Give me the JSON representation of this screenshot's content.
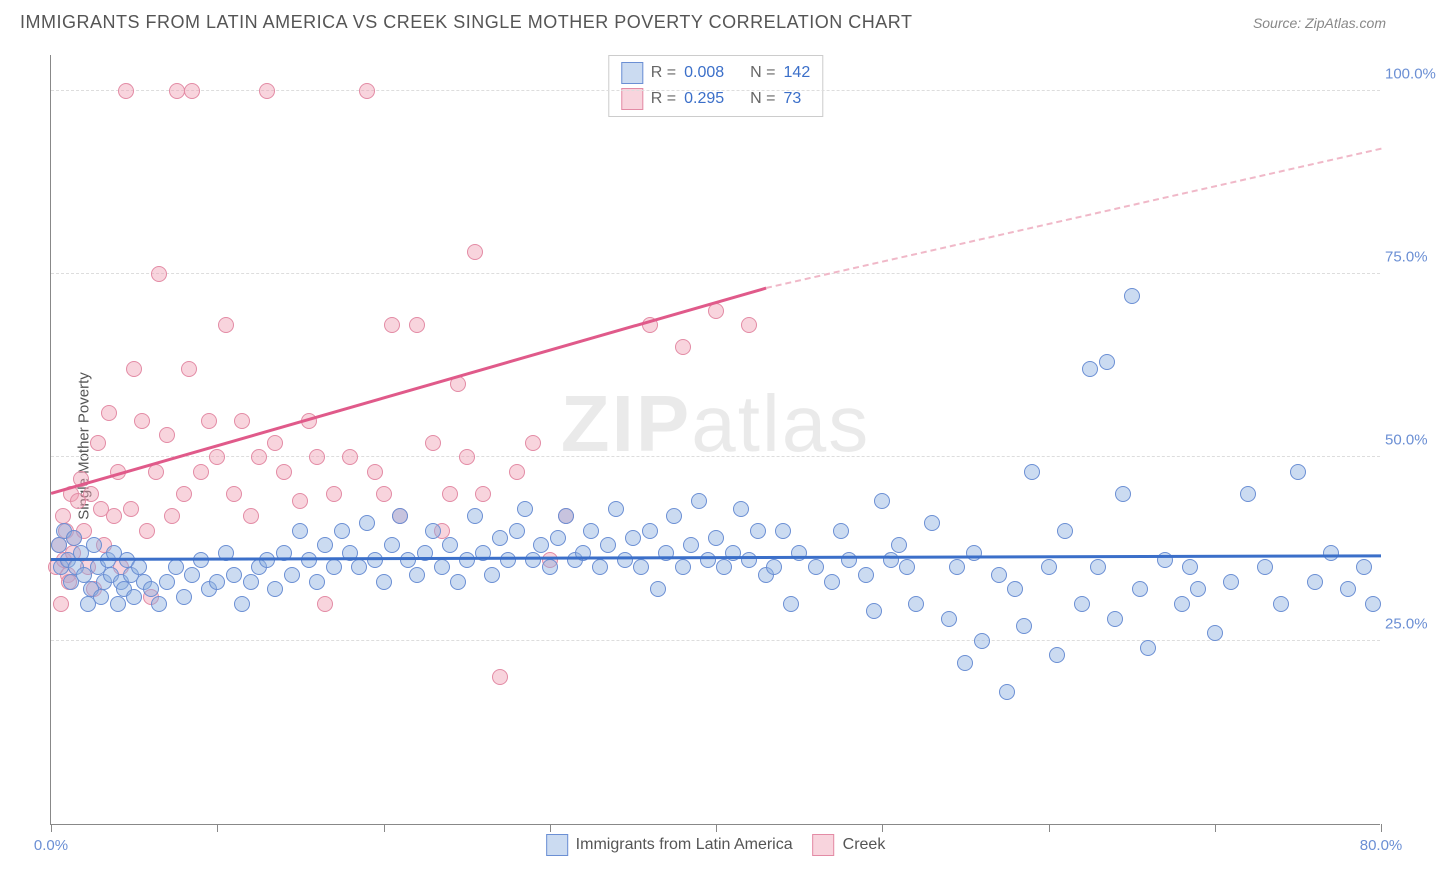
{
  "header": {
    "title": "IMMIGRANTS FROM LATIN AMERICA VS CREEK SINGLE MOTHER POVERTY CORRELATION CHART",
    "source_label": "Source:",
    "source_value": "ZipAtlas.com"
  },
  "chart": {
    "ylabel": "Single Mother Poverty",
    "watermark_bold": "ZIP",
    "watermark_light": "atlas",
    "xlim": [
      0,
      80
    ],
    "ylim": [
      0,
      105
    ],
    "ygrid": [
      25,
      50,
      75,
      100
    ],
    "yticklabels": [
      "25.0%",
      "50.0%",
      "75.0%",
      "100.0%"
    ],
    "ytick_color": "#6b8fd4",
    "xticks": [
      0,
      10,
      20,
      30,
      40,
      50,
      60,
      70,
      80
    ],
    "xaxis_labels": [
      {
        "x": 0,
        "text": "0.0%",
        "color": "#6b8fd4"
      },
      {
        "x": 80,
        "text": "80.0%",
        "color": "#6b8fd4"
      }
    ],
    "series": {
      "blue": {
        "label": "Immigrants from Latin America",
        "fill": "rgba(140,175,225,0.45)",
        "stroke": "#6b8fd4",
        "marker_radius": 8,
        "R": "0.008",
        "N": "142",
        "trend": {
          "x0": 0,
          "y0": 36,
          "x1": 80,
          "y1": 36.5,
          "color": "#3b6fc9"
        },
        "points": [
          [
            0.5,
            38
          ],
          [
            0.6,
            35
          ],
          [
            0.8,
            40
          ],
          [
            1,
            36
          ],
          [
            1.2,
            33
          ],
          [
            1.4,
            39
          ],
          [
            1.5,
            35
          ],
          [
            1.8,
            37
          ],
          [
            2,
            34
          ],
          [
            2.2,
            30
          ],
          [
            2.4,
            32
          ],
          [
            2.6,
            38
          ],
          [
            2.8,
            35
          ],
          [
            3,
            31
          ],
          [
            3.2,
            33
          ],
          [
            3.4,
            36
          ],
          [
            3.6,
            34
          ],
          [
            3.8,
            37
          ],
          [
            4,
            30
          ],
          [
            4.2,
            33
          ],
          [
            4.4,
            32
          ],
          [
            4.6,
            36
          ],
          [
            4.8,
            34
          ],
          [
            5,
            31
          ],
          [
            5.3,
            35
          ],
          [
            5.6,
            33
          ],
          [
            6,
            32
          ],
          [
            6.5,
            30
          ],
          [
            7,
            33
          ],
          [
            7.5,
            35
          ],
          [
            8,
            31
          ],
          [
            8.5,
            34
          ],
          [
            9,
            36
          ],
          [
            9.5,
            32
          ],
          [
            10,
            33
          ],
          [
            10.5,
            37
          ],
          [
            11,
            34
          ],
          [
            11.5,
            30
          ],
          [
            12,
            33
          ],
          [
            12.5,
            35
          ],
          [
            13,
            36
          ],
          [
            13.5,
            32
          ],
          [
            14,
            37
          ],
          [
            14.5,
            34
          ],
          [
            15,
            40
          ],
          [
            15.5,
            36
          ],
          [
            16,
            33
          ],
          [
            16.5,
            38
          ],
          [
            17,
            35
          ],
          [
            17.5,
            40
          ],
          [
            18,
            37
          ],
          [
            18.5,
            35
          ],
          [
            19,
            41
          ],
          [
            19.5,
            36
          ],
          [
            20,
            33
          ],
          [
            20.5,
            38
          ],
          [
            21,
            42
          ],
          [
            21.5,
            36
          ],
          [
            22,
            34
          ],
          [
            22.5,
            37
          ],
          [
            23,
            40
          ],
          [
            23.5,
            35
          ],
          [
            24,
            38
          ],
          [
            24.5,
            33
          ],
          [
            25,
            36
          ],
          [
            25.5,
            42
          ],
          [
            26,
            37
          ],
          [
            26.5,
            34
          ],
          [
            27,
            39
          ],
          [
            27.5,
            36
          ],
          [
            28,
            40
          ],
          [
            28.5,
            43
          ],
          [
            29,
            36
          ],
          [
            29.5,
            38
          ],
          [
            30,
            35
          ],
          [
            30.5,
            39
          ],
          [
            31,
            42
          ],
          [
            31.5,
            36
          ],
          [
            32,
            37
          ],
          [
            32.5,
            40
          ],
          [
            33,
            35
          ],
          [
            33.5,
            38
          ],
          [
            34,
            43
          ],
          [
            34.5,
            36
          ],
          [
            35,
            39
          ],
          [
            35.5,
            35
          ],
          [
            36,
            40
          ],
          [
            36.5,
            32
          ],
          [
            37,
            37
          ],
          [
            37.5,
            42
          ],
          [
            38,
            35
          ],
          [
            38.5,
            38
          ],
          [
            39,
            44
          ],
          [
            39.5,
            36
          ],
          [
            40,
            39
          ],
          [
            40.5,
            35
          ],
          [
            41,
            37
          ],
          [
            41.5,
            43
          ],
          [
            42,
            36
          ],
          [
            42.5,
            40
          ],
          [
            43,
            34
          ],
          [
            43.5,
            35
          ],
          [
            44,
            40
          ],
          [
            44.5,
            30
          ],
          [
            45,
            37
          ],
          [
            46,
            35
          ],
          [
            47,
            33
          ],
          [
            47.5,
            40
          ],
          [
            48,
            36
          ],
          [
            49,
            34
          ],
          [
            49.5,
            29
          ],
          [
            50,
            44
          ],
          [
            50.5,
            36
          ],
          [
            51,
            38
          ],
          [
            51.5,
            35
          ],
          [
            52,
            30
          ],
          [
            53,
            41
          ],
          [
            54,
            28
          ],
          [
            54.5,
            35
          ],
          [
            55,
            22
          ],
          [
            55.5,
            37
          ],
          [
            56,
            25
          ],
          [
            57,
            34
          ],
          [
            57.5,
            18
          ],
          [
            58,
            32
          ],
          [
            58.5,
            27
          ],
          [
            59,
            48
          ],
          [
            60,
            35
          ],
          [
            60.5,
            23
          ],
          [
            61,
            40
          ],
          [
            62,
            30
          ],
          [
            62.5,
            62
          ],
          [
            63,
            35
          ],
          [
            63.5,
            63
          ],
          [
            64,
            28
          ],
          [
            64.5,
            45
          ],
          [
            65,
            72
          ],
          [
            65.5,
            32
          ],
          [
            66,
            24
          ],
          [
            67,
            36
          ],
          [
            68,
            30
          ],
          [
            68.5,
            35
          ],
          [
            69,
            32
          ],
          [
            70,
            26
          ],
          [
            71,
            33
          ],
          [
            72,
            45
          ],
          [
            73,
            35
          ],
          [
            74,
            30
          ],
          [
            75,
            48
          ],
          [
            76,
            33
          ],
          [
            77,
            37
          ],
          [
            78,
            32
          ],
          [
            79,
            35
          ],
          [
            79.5,
            30
          ]
        ]
      },
      "pink": {
        "label": "Creek",
        "fill": "rgba(240,160,180,0.45)",
        "stroke": "#e38ba5",
        "marker_radius": 8,
        "R": "0.295",
        "N": "73",
        "trend_solid": {
          "x0": 0,
          "y0": 45,
          "x1": 43,
          "y1": 73,
          "color": "#e05a8a"
        },
        "trend_dash": {
          "x0": 43,
          "y0": 73,
          "x1": 80,
          "y1": 92,
          "color": "#f0b8c8"
        },
        "points": [
          [
            0.3,
            35
          ],
          [
            0.5,
            38
          ],
          [
            0.6,
            30
          ],
          [
            0.7,
            42
          ],
          [
            0.8,
            36
          ],
          [
            0.9,
            40
          ],
          [
            1,
            34
          ],
          [
            1.1,
            33
          ],
          [
            1.2,
            45
          ],
          [
            1.3,
            37
          ],
          [
            1.4,
            39
          ],
          [
            1.6,
            44
          ],
          [
            1.8,
            47
          ],
          [
            2,
            40
          ],
          [
            2.2,
            35
          ],
          [
            2.4,
            45
          ],
          [
            2.6,
            32
          ],
          [
            2.8,
            52
          ],
          [
            3,
            43
          ],
          [
            3.2,
            38
          ],
          [
            3.5,
            56
          ],
          [
            3.8,
            42
          ],
          [
            4,
            48
          ],
          [
            4.2,
            35
          ],
          [
            4.5,
            100
          ],
          [
            4.8,
            43
          ],
          [
            5,
            62
          ],
          [
            5.5,
            55
          ],
          [
            5.8,
            40
          ],
          [
            6,
            31
          ],
          [
            6.3,
            48
          ],
          [
            6.5,
            75
          ],
          [
            7,
            53
          ],
          [
            7.3,
            42
          ],
          [
            7.6,
            100
          ],
          [
            8,
            45
          ],
          [
            8.3,
            62
          ],
          [
            8.5,
            100
          ],
          [
            9,
            48
          ],
          [
            9.5,
            55
          ],
          [
            10,
            50
          ],
          [
            10.5,
            68
          ],
          [
            11,
            45
          ],
          [
            11.5,
            55
          ],
          [
            12,
            42
          ],
          [
            12.5,
            50
          ],
          [
            13,
            100
          ],
          [
            13.5,
            52
          ],
          [
            14,
            48
          ],
          [
            15,
            44
          ],
          [
            15.5,
            55
          ],
          [
            16,
            50
          ],
          [
            16.5,
            30
          ],
          [
            17,
            45
          ],
          [
            18,
            50
          ],
          [
            19,
            100
          ],
          [
            19.5,
            48
          ],
          [
            20,
            45
          ],
          [
            20.5,
            68
          ],
          [
            21,
            42
          ],
          [
            22,
            68
          ],
          [
            23,
            52
          ],
          [
            23.5,
            40
          ],
          [
            24,
            45
          ],
          [
            24.5,
            60
          ],
          [
            25,
            50
          ],
          [
            25.5,
            78
          ],
          [
            26,
            45
          ],
          [
            27,
            20
          ],
          [
            28,
            48
          ],
          [
            29,
            52
          ],
          [
            30,
            36
          ],
          [
            31,
            42
          ],
          [
            36,
            68
          ],
          [
            38,
            65
          ],
          [
            40,
            70
          ],
          [
            42,
            68
          ]
        ]
      }
    },
    "legend_top": {
      "r_label": "R =",
      "n_label": "N =",
      "value_color": "#3b6fc9",
      "label_color": "#666"
    },
    "legend_bottom_color": "#555"
  }
}
